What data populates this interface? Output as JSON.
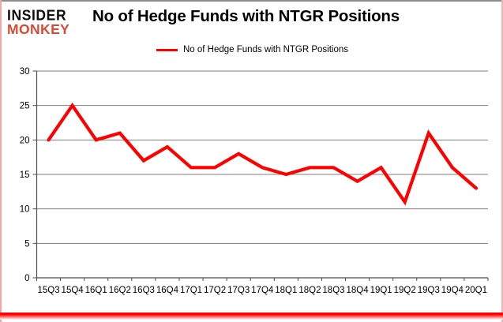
{
  "logo": {
    "line1": "INSIDER",
    "line2": "MONKEY",
    "line1_color": "#0d0d0d",
    "line2_color": "#da4a31"
  },
  "header": {
    "title": "No of Hedge Funds with NTGR Positions"
  },
  "legend": {
    "label": "No of Hedge Funds with NTGR Positions",
    "swatch_color": "#ff0000"
  },
  "chart_data": {
    "type": "line",
    "title": "No of Hedge Funds with NTGR Positions",
    "categories": [
      "15Q3",
      "15Q4",
      "16Q1",
      "16Q2",
      "16Q3",
      "16Q4",
      "17Q1",
      "17Q2",
      "17Q3",
      "17Q4",
      "18Q1",
      "18Q2",
      "18Q3",
      "18Q4",
      "19Q1",
      "19Q2",
      "19Q3",
      "19Q4",
      "20Q1"
    ],
    "series": [
      {
        "name": "No of Hedge Funds with NTGR Positions",
        "color": "#ff0000",
        "values": [
          20,
          25,
          20,
          21,
          17,
          19,
          16,
          16,
          18,
          16,
          15,
          16,
          16,
          14,
          16,
          11,
          21,
          16,
          13
        ]
      }
    ],
    "xlabel": "",
    "ylabel": "",
    "ylim": [
      0,
      30
    ],
    "yticks": [
      0,
      5,
      10,
      15,
      20,
      25,
      30
    ],
    "grid": true,
    "legend_position": "top-center",
    "gridline_color": "#7f7f7f",
    "axis_color": "#4d4d4d",
    "tick_label_color": "#000000",
    "background": "#ffffff"
  },
  "frame": {
    "border_top_color": "#8c8c8c",
    "border_left_color": "#f0a6a6",
    "border_right_color": "#f0b6b6",
    "bottom_gradient_from": "#ff0000",
    "bottom_gradient_to": "#ffffff"
  }
}
